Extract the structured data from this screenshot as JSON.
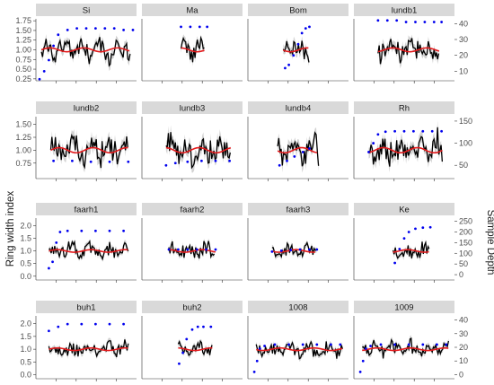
{
  "chart_data": {
    "type": "line",
    "ylabel_left": "Ring width index",
    "ylabel_right": "Sample Depth",
    "series_colors": {
      "index": "#000000",
      "smooth": "#e41a1c",
      "band": "#bfbfbf",
      "depth": "#0000ee"
    },
    "rows": [
      {
        "left_ticks": [
          "0.25",
          "0.50",
          "0.75",
          "1.00",
          "1.25",
          "1.50",
          "1.75"
        ],
        "left_range": [
          0.2,
          1.8
        ],
        "right_ticks": [
          "10",
          "20",
          "30",
          "40"
        ],
        "right_range": [
          4,
          43
        ],
        "panels": [
          {
            "name": "Si",
            "x_range": [
              0,
              1
            ],
            "x": [
              0.02,
              0.98
            ],
            "depth_x": [
              0.0,
              0.05,
              0.1,
              0.15,
              0.2,
              0.3,
              0.4,
              0.5,
              0.6,
              0.7,
              0.8,
              0.9,
              1.0
            ],
            "depth": [
              5,
              10,
              17,
              26,
              33,
              36,
              37,
              37,
              37,
              37,
              37,
              36,
              36
            ]
          },
          {
            "name": "Ma",
            "x_range": [
              0,
              1
            ],
            "x": [
              0.38,
              0.64
            ],
            "depth_x": [
              0.38,
              0.48,
              0.58,
              0.66
            ],
            "depth": [
              38,
              38,
              38,
              38
            ]
          },
          {
            "name": "Bom",
            "x_range": [
              0,
              1
            ],
            "x": [
              0.34,
              0.62
            ],
            "depth_x": [
              0.36,
              0.4,
              0.45,
              0.5,
              0.54,
              0.58,
              0.62
            ],
            "depth": [
              12,
              14,
              20,
              27,
              34,
              37,
              38
            ]
          },
          {
            "name": "lundb1",
            "x_range": [
              0,
              1
            ],
            "x": [
              0.22,
              0.88
            ],
            "depth_x": [
              0.22,
              0.32,
              0.42,
              0.52,
              0.62,
              0.72,
              0.82,
              0.9
            ],
            "depth": [
              42,
              42,
              42,
              41,
              41,
              41,
              41,
              41
            ]
          }
        ]
      },
      {
        "left_ticks": [
          "0.75",
          "1.00",
          "1.25",
          "1.50"
        ],
        "left_range": [
          0.45,
          1.65
        ],
        "right_ticks": [
          "50",
          "100",
          "150"
        ],
        "right_range": [
          20,
          160
        ],
        "panels": [
          {
            "name": "lundb2",
            "x_range": [
              0,
              1
            ],
            "x": [
              0.12,
              0.95
            ],
            "depth_x": [
              0.15,
              0.35,
              0.55,
              0.75,
              0.95
            ],
            "depth": [
              60,
              60,
              58,
              58,
              58
            ]
          },
          {
            "name": "lundb3",
            "x_range": [
              0,
              1
            ],
            "x": [
              0.22,
              0.92
            ],
            "depth_x": [
              0.22,
              0.32,
              0.45,
              0.6,
              0.75,
              0.9
            ],
            "depth": [
              50,
              55,
              58,
              60,
              60,
              60
            ]
          },
          {
            "name": "lundb4",
            "x_range": [
              0,
              1
            ],
            "x": [
              0.28,
              0.72
            ],
            "depth_x": [
              0.3,
              0.38,
              0.46,
              0.55,
              0.62
            ],
            "depth": [
              50,
              60,
              70,
              80,
              88
            ]
          },
          {
            "name": "Rh",
            "x_range": [
              0,
              1
            ],
            "x": [
              0.12,
              0.92
            ],
            "depth_x": [
              0.12,
              0.17,
              0.22,
              0.3,
              0.4,
              0.5,
              0.6,
              0.7,
              0.8,
              0.9
            ],
            "depth": [
              80,
              100,
              120,
              126,
              127,
              127,
              127,
              127,
              127,
              127
            ]
          }
        ]
      },
      {
        "left_ticks": [
          "0.0",
          "0.5",
          "1.0",
          "1.5",
          "2.0"
        ],
        "left_range": [
          -0.15,
          2.3
        ],
        "right_ticks": [
          "0",
          "50",
          "100",
          "150",
          "200",
          "250"
        ],
        "right_range": [
          -25,
          265
        ],
        "panels": [
          {
            "name": "faarh1",
            "x_range": [
              0,
              1
            ],
            "x": [
              0.1,
              0.95
            ],
            "depth_x": [
              0.1,
              0.14,
              0.18,
              0.22,
              0.3,
              0.45,
              0.6,
              0.75,
              0.9
            ],
            "depth": [
              30,
              60,
              150,
              200,
              205,
              205,
              205,
              205,
              205
            ]
          },
          {
            "name": "faarh2",
            "x_range": [
              0,
              1
            ],
            "x": [
              0.25,
              0.75
            ],
            "depth_x": [
              0.25,
              0.35,
              0.45,
              0.55,
              0.65,
              0.75
            ],
            "depth": [
              118,
              118,
              118,
              118,
              118,
              118
            ]
          },
          {
            "name": "faarh3",
            "x_range": [
              0,
              1
            ],
            "x": [
              0.22,
              0.7
            ],
            "depth_x": [
              0.22,
              0.32,
              0.42,
              0.52,
              0.62,
              0.7
            ],
            "depth": [
              108,
              112,
              115,
              118,
              118,
              118
            ]
          },
          {
            "name": "Ke",
            "x_range": [
              0,
              1
            ],
            "x": [
              0.38,
              0.78
            ],
            "depth_x": [
              0.4,
              0.45,
              0.5,
              0.55,
              0.62,
              0.7,
              0.78
            ],
            "depth": [
              55,
              120,
              170,
              200,
              215,
              220,
              222
            ]
          }
        ]
      },
      {
        "left_ticks": [
          "0.0",
          "0.5",
          "1.0",
          "1.5",
          "2.0"
        ],
        "left_range": [
          -0.15,
          2.3
        ],
        "right_ticks": [
          "0",
          "10",
          "20",
          "30",
          "40"
        ],
        "right_range": [
          -3,
          43
        ],
        "panels": [
          {
            "name": "buh1",
            "x_range": [
              0,
              1
            ],
            "x": [
              0.1,
              0.95
            ],
            "depth_x": [
              0.1,
              0.2,
              0.3,
              0.45,
              0.6,
              0.75,
              0.9
            ],
            "depth": [
              32,
              35,
              37,
              37,
              37,
              37,
              37
            ]
          },
          {
            "name": "buh2",
            "x_range": [
              0,
              1
            ],
            "x": [
              0.35,
              0.72
            ],
            "depth_x": [
              0.36,
              0.4,
              0.44,
              0.5,
              0.56,
              0.62,
              0.7
            ],
            "depth": [
              8,
              16,
              26,
              33,
              35,
              35,
              35
            ]
          },
          {
            "name": "1008",
            "x_range": [
              0,
              1
            ],
            "x": [
              0.05,
              0.98
            ],
            "depth_x": [
              0.03,
              0.06,
              0.09,
              0.14,
              0.25,
              0.4,
              0.55,
              0.7,
              0.85,
              0.95
            ],
            "depth": [
              2,
              10,
              19,
              21,
              22,
              22,
              22,
              22,
              22,
              22
            ]
          },
          {
            "name": "1009",
            "x_range": [
              0,
              1
            ],
            "x": [
              0.05,
              0.98
            ],
            "depth_x": [
              0.03,
              0.06,
              0.09,
              0.14,
              0.25,
              0.4,
              0.55,
              0.7,
              0.85,
              0.95
            ],
            "depth": [
              2,
              10,
              19,
              21,
              22,
              22,
              22,
              22,
              22,
              22
            ]
          }
        ]
      }
    ]
  }
}
